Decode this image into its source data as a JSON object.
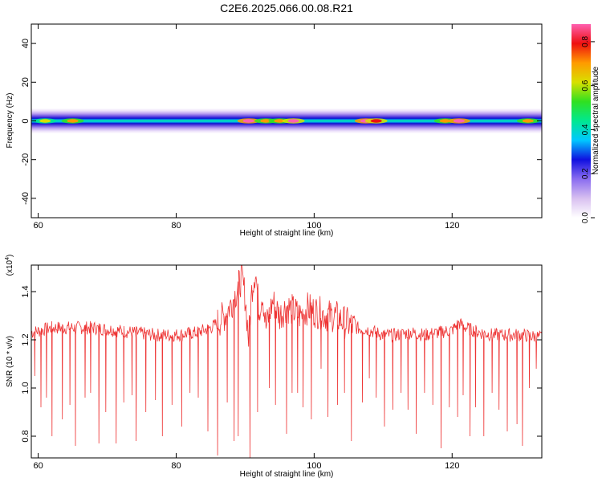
{
  "title": "C2E6.2025.066.00.08.R21",
  "colors": {
    "snr_line": "#ee3333",
    "frame": "#000000",
    "colormap": [
      "#ffffff",
      "#d8c0f0",
      "#8a6cf0",
      "#1010e0",
      "#00c8ff",
      "#00e890",
      "#30e020",
      "#d8e000",
      "#ff9a00",
      "#ee1010",
      "#ff60b0"
    ]
  },
  "chart_data": [
    {
      "type": "heatmap",
      "panel": "spectrogram",
      "xlabel": "Height of straight line (km)",
      "ylabel": "Frequency (Hz)",
      "xlim": [
        59,
        133
      ],
      "ylim": [
        -50,
        50
      ],
      "xticks": [
        60,
        80,
        100,
        120
      ],
      "yticks": [
        -40,
        -20,
        0,
        20,
        40
      ],
      "xtick_labels": [
        "60",
        "80",
        "100",
        "120"
      ],
      "ytick_labels": [
        "-40",
        "-20",
        "0",
        "20",
        "40"
      ],
      "band_center_hz": 0,
      "band_halfwidth_hz": 5,
      "hot_spots": [
        {
          "x": 61,
          "v": 0.62
        },
        {
          "x": 65,
          "v": 0.72
        },
        {
          "x": 90.5,
          "v": 0.9
        },
        {
          "x": 93,
          "v": 0.7
        },
        {
          "x": 95,
          "v": 0.72
        },
        {
          "x": 97,
          "v": 0.85
        },
        {
          "x": 107.5,
          "v": 0.88
        },
        {
          "x": 109,
          "v": 0.78
        },
        {
          "x": 119,
          "v": 0.68
        },
        {
          "x": 121,
          "v": 0.9
        },
        {
          "x": 131,
          "v": 0.7
        }
      ],
      "colorbar": {
        "label": "Normalized spectral amplitude",
        "range": [
          0,
          0.88
        ],
        "ticks": [
          0.0,
          0.2,
          0.4,
          0.6,
          0.8
        ],
        "tick_labels": [
          "0.0",
          "0.2",
          "0.4",
          "0.6",
          "0.8"
        ]
      }
    },
    {
      "type": "line",
      "panel": "snr",
      "xlabel": "Height of straight line (km)",
      "ylabel": "SNR (10 * v/v)",
      "scale_label": "(x10",
      "scale_exponent": "4",
      "xlim": [
        59,
        133
      ],
      "ylim": [
        0.71,
        1.51
      ],
      "xticks": [
        60,
        80,
        100,
        120
      ],
      "yticks": [
        0.8,
        1.0,
        1.2,
        1.4
      ],
      "xtick_labels": [
        "60",
        "80",
        "100",
        "120"
      ],
      "ytick_labels": [
        "0.8",
        "1.0",
        "1.2",
        "1.4"
      ],
      "series": [
        {
          "name": "",
          "x": [
            59,
            62,
            65,
            68,
            71,
            74,
            77,
            80,
            83,
            85,
            86,
            87,
            88,
            89,
            89.5,
            90,
            90.5,
            91,
            91.5,
            92,
            92.5,
            93,
            94,
            95,
            96,
            97,
            98,
            99,
            100,
            101,
            102,
            103,
            104,
            106,
            108,
            110,
            112,
            114,
            116,
            118,
            120,
            121,
            122,
            124,
            126,
            128,
            130,
            133
          ],
          "y": [
            1.23,
            1.25,
            1.25,
            1.25,
            1.24,
            1.23,
            1.22,
            1.22,
            1.23,
            1.25,
            1.27,
            1.3,
            1.35,
            1.42,
            1.46,
            1.38,
            1.2,
            1.42,
            1.49,
            1.32,
            1.4,
            1.25,
            1.36,
            1.3,
            1.34,
            1.32,
            1.3,
            1.33,
            1.32,
            1.31,
            1.3,
            1.3,
            1.28,
            1.25,
            1.24,
            1.22,
            1.22,
            1.23,
            1.22,
            1.23,
            1.24,
            1.27,
            1.25,
            1.23,
            1.22,
            1.22,
            1.22,
            1.21
          ],
          "dips": [
            {
              "x": 59.5,
              "y": 1.05
            },
            {
              "x": 60.4,
              "y": 0.92
            },
            {
              "x": 61.2,
              "y": 0.96
            },
            {
              "x": 62.0,
              "y": 0.8
            },
            {
              "x": 63.5,
              "y": 0.87
            },
            {
              "x": 64.6,
              "y": 0.93
            },
            {
              "x": 65.4,
              "y": 0.76
            },
            {
              "x": 66.8,
              "y": 0.96
            },
            {
              "x": 67.6,
              "y": 0.98
            },
            {
              "x": 68.8,
              "y": 0.77
            },
            {
              "x": 69.8,
              "y": 0.9
            },
            {
              "x": 71.3,
              "y": 0.77
            },
            {
              "x": 72.4,
              "y": 0.94
            },
            {
              "x": 73.6,
              "y": 0.97
            },
            {
              "x": 74.2,
              "y": 0.78
            },
            {
              "x": 75.6,
              "y": 0.9
            },
            {
              "x": 77.0,
              "y": 0.95
            },
            {
              "x": 78.0,
              "y": 0.8
            },
            {
              "x": 79.4,
              "y": 0.93
            },
            {
              "x": 80.8,
              "y": 0.84
            },
            {
              "x": 82.0,
              "y": 0.98
            },
            {
              "x": 83.2,
              "y": 0.96
            },
            {
              "x": 84.6,
              "y": 0.82
            },
            {
              "x": 86.0,
              "y": 0.72
            },
            {
              "x": 87.4,
              "y": 0.94
            },
            {
              "x": 88.4,
              "y": 0.78
            },
            {
              "x": 89.0,
              "y": 0.8
            },
            {
              "x": 90.7,
              "y": 0.71
            },
            {
              "x": 91.8,
              "y": 0.9
            },
            {
              "x": 93.5,
              "y": 1.0
            },
            {
              "x": 94.4,
              "y": 0.93
            },
            {
              "x": 96.0,
              "y": 0.81
            },
            {
              "x": 96.8,
              "y": 0.98
            },
            {
              "x": 97.6,
              "y": 0.98
            },
            {
              "x": 98.4,
              "y": 0.92
            },
            {
              "x": 99.6,
              "y": 0.87
            },
            {
              "x": 101.0,
              "y": 1.08
            },
            {
              "x": 102.0,
              "y": 0.88
            },
            {
              "x": 103.4,
              "y": 0.93
            },
            {
              "x": 104.4,
              "y": 0.98
            },
            {
              "x": 105.4,
              "y": 0.78
            },
            {
              "x": 107.0,
              "y": 0.94
            },
            {
              "x": 108.0,
              "y": 1.04
            },
            {
              "x": 109.0,
              "y": 0.96
            },
            {
              "x": 110.2,
              "y": 0.84
            },
            {
              "x": 111.4,
              "y": 0.91
            },
            {
              "x": 112.6,
              "y": 0.98
            },
            {
              "x": 113.6,
              "y": 0.91
            },
            {
              "x": 114.8,
              "y": 0.81
            },
            {
              "x": 116.0,
              "y": 0.98
            },
            {
              "x": 117.2,
              "y": 0.93
            },
            {
              "x": 118.4,
              "y": 0.75
            },
            {
              "x": 119.6,
              "y": 0.92
            },
            {
              "x": 120.8,
              "y": 0.88
            },
            {
              "x": 121.6,
              "y": 0.97
            },
            {
              "x": 122.6,
              "y": 0.8
            },
            {
              "x": 123.4,
              "y": 0.92
            },
            {
              "x": 124.6,
              "y": 0.8
            },
            {
              "x": 125.8,
              "y": 0.98
            },
            {
              "x": 126.8,
              "y": 0.91
            },
            {
              "x": 128.0,
              "y": 0.82
            },
            {
              "x": 129.4,
              "y": 0.85
            },
            {
              "x": 130.2,
              "y": 0.76
            },
            {
              "x": 131.2,
              "y": 1.0
            },
            {
              "x": 132.2,
              "y": 1.08
            }
          ]
        }
      ]
    }
  ]
}
